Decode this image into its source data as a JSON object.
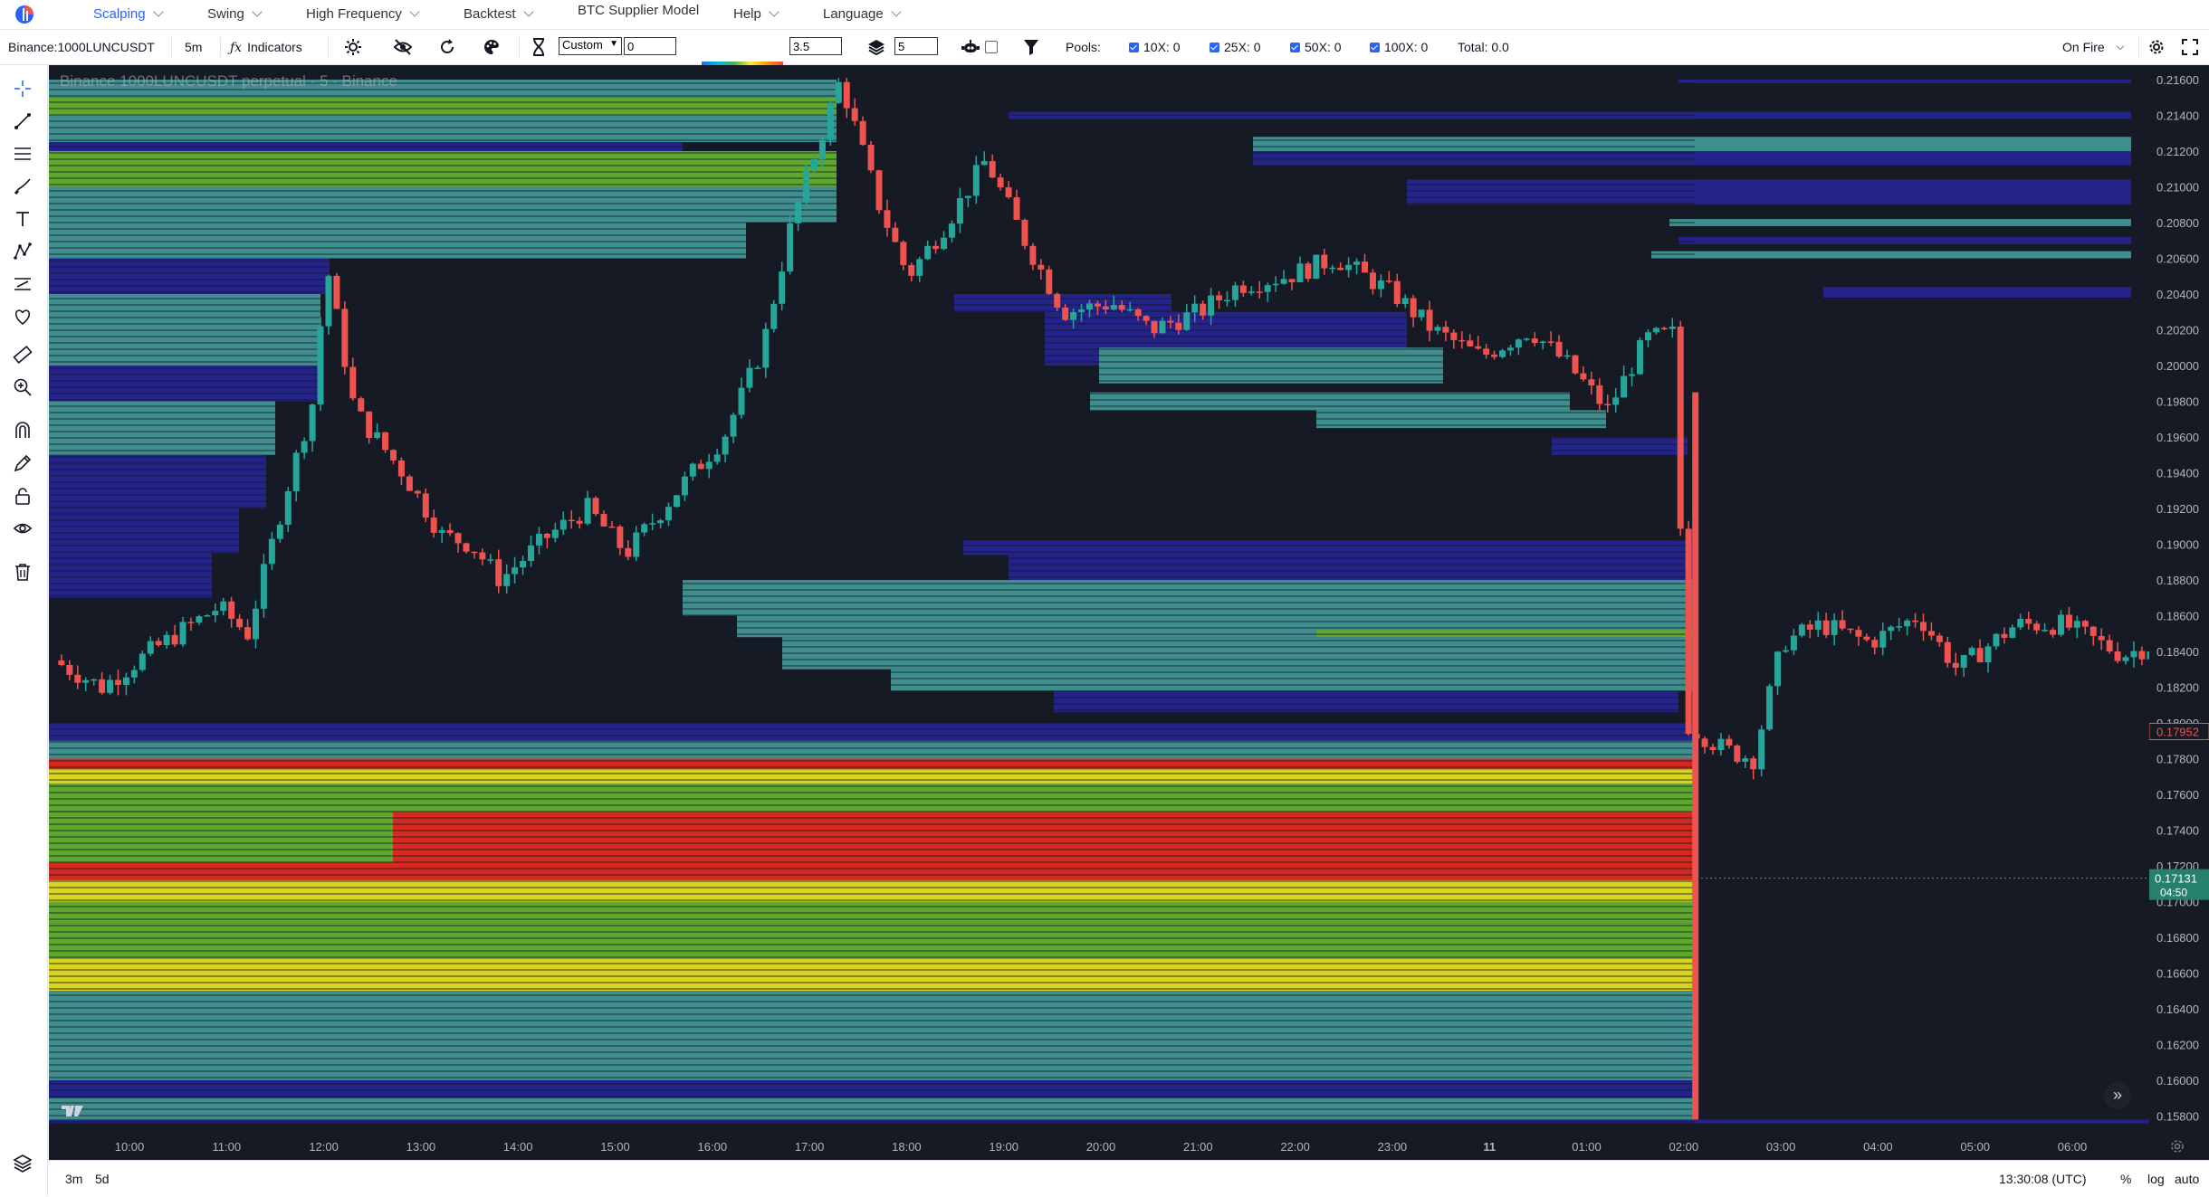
{
  "menu": {
    "items": [
      {
        "label": "Scalping",
        "active": true
      },
      {
        "label": "Swing"
      },
      {
        "label": "High Frequency"
      },
      {
        "label": "Backtest"
      },
      {
        "label": "BTC Supplier Model"
      },
      {
        "label": "Help"
      },
      {
        "label": "Language"
      }
    ]
  },
  "toolbar": {
    "symbol": "Binance:1000LUNCUSDT",
    "interval": "5m",
    "indicators_label": "Indicators",
    "range_select": "Custom",
    "range_value": "0",
    "gradient_value": "3.5",
    "layers_value": "5",
    "pools_label": "Pools:",
    "pool_10x": "10X: 0",
    "pool_25x": "25X: 0",
    "pool_50x": "50X: 0",
    "pool_100x": "100X: 0",
    "total": "Total: 0.0",
    "theme": "On Fire"
  },
  "chart_data": {
    "type": "heatmap",
    "legend_text": "Binance 1000LUNCUSDT perpetual · 5 · Binance",
    "y_ticks": [
      "0.21600",
      "0.21400",
      "0.21200",
      "0.21000",
      "0.20800",
      "0.20600",
      "0.20400",
      "0.20200",
      "0.20000",
      "0.19800",
      "0.19600",
      "0.19400",
      "0.19200",
      "0.19000",
      "0.18800",
      "0.18600",
      "0.18400",
      "0.18200",
      "0.18000",
      "0.17800",
      "0.17600",
      "0.17400",
      "0.17200",
      "0.17000",
      "0.16800",
      "0.16600",
      "0.16400",
      "0.16200",
      "0.16000",
      "0.15800"
    ],
    "x_ticks": [
      "10:00",
      "11:00",
      "12:00",
      "13:00",
      "14:00",
      "15:00",
      "16:00",
      "17:00",
      "18:00",
      "19:00",
      "20:00",
      "21:00",
      "22:00",
      "23:00",
      "11",
      "01:00",
      "02:00",
      "03:00",
      "04:00",
      "05:00",
      "06:00"
    ],
    "last_price": "0.17952",
    "crosshair_price": "0.17131",
    "crosshair_countdown": "04:50",
    "colors": {
      "up": "#26a69a",
      "down": "#ef5350",
      "background": "#161a25"
    }
  },
  "bottom": {
    "range_3m": "3m",
    "range_5d": "5d",
    "clock": "13:30:08 (UTC)",
    "percent": "%",
    "log": "log",
    "auto": "auto"
  }
}
